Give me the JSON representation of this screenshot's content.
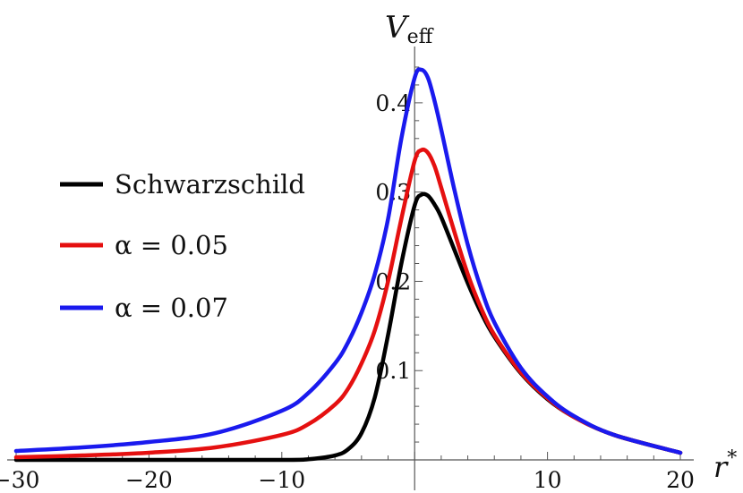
{
  "chart_data": {
    "type": "line",
    "title": "",
    "xlabel": "r*",
    "ylabel": "V_eff",
    "xlim": [
      -30,
      20
    ],
    "ylim": [
      0,
      0.45
    ],
    "grid": false,
    "legend_placement": "left",
    "x_ticks": [
      {
        "value": -30,
        "label": "−30"
      },
      {
        "value": -20,
        "label": "−20"
      },
      {
        "value": -10,
        "label": "−10"
      },
      {
        "value": 10,
        "label": "10"
      },
      {
        "value": 20,
        "label": "20"
      }
    ],
    "y_ticks": [
      {
        "value": 0.1,
        "label": "0.1"
      },
      {
        "value": 0.2,
        "label": "0.2"
      },
      {
        "value": 0.3,
        "label": "0.3"
      },
      {
        "value": 0.4,
        "label": "0.4"
      }
    ],
    "series": [
      {
        "name": "Schwarzschild",
        "color": "#000000",
        "x": [
          -30,
          -20,
          -10,
          -8,
          -6,
          -5,
          -4,
          -3,
          -2,
          -1,
          0,
          0.5,
          1,
          1.5,
          2,
          3,
          4,
          5,
          6,
          8,
          10,
          12,
          15,
          20
        ],
        "y": [
          0,
          0,
          0,
          0.0008,
          0.005,
          0.012,
          0.03,
          0.07,
          0.14,
          0.22,
          0.285,
          0.297,
          0.296,
          0.286,
          0.272,
          0.235,
          0.198,
          0.165,
          0.138,
          0.097,
          0.068,
          0.048,
          0.028,
          0.008
        ]
      },
      {
        "name": "α = 0.05",
        "color": "#e51010",
        "x": [
          -30,
          -25,
          -20,
          -15,
          -10,
          -8,
          -6,
          -5,
          -4,
          -3,
          -2,
          -1,
          0,
          0.5,
          1,
          1.5,
          2,
          3,
          4,
          5,
          6,
          8,
          10,
          12,
          15,
          20
        ],
        "y": [
          0.003,
          0.005,
          0.008,
          0.014,
          0.028,
          0.04,
          0.062,
          0.08,
          0.108,
          0.145,
          0.2,
          0.27,
          0.335,
          0.347,
          0.344,
          0.329,
          0.305,
          0.255,
          0.208,
          0.17,
          0.14,
          0.098,
          0.069,
          0.048,
          0.028,
          0.008
        ]
      },
      {
        "name": "α = 0.07",
        "color": "#1a1aee",
        "x": [
          -30,
          -25,
          -20,
          -15,
          -10,
          -8,
          -6,
          -5,
          -4,
          -3,
          -2,
          -1,
          0,
          0.5,
          1,
          1.5,
          2,
          3,
          4,
          5,
          6,
          8,
          10,
          12,
          15,
          20
        ],
        "y": [
          0.01,
          0.014,
          0.02,
          0.03,
          0.055,
          0.075,
          0.108,
          0.132,
          0.165,
          0.208,
          0.27,
          0.36,
          0.428,
          0.437,
          0.428,
          0.402,
          0.37,
          0.302,
          0.241,
          0.192,
          0.154,
          0.103,
          0.071,
          0.049,
          0.028,
          0.008
        ]
      }
    ]
  }
}
